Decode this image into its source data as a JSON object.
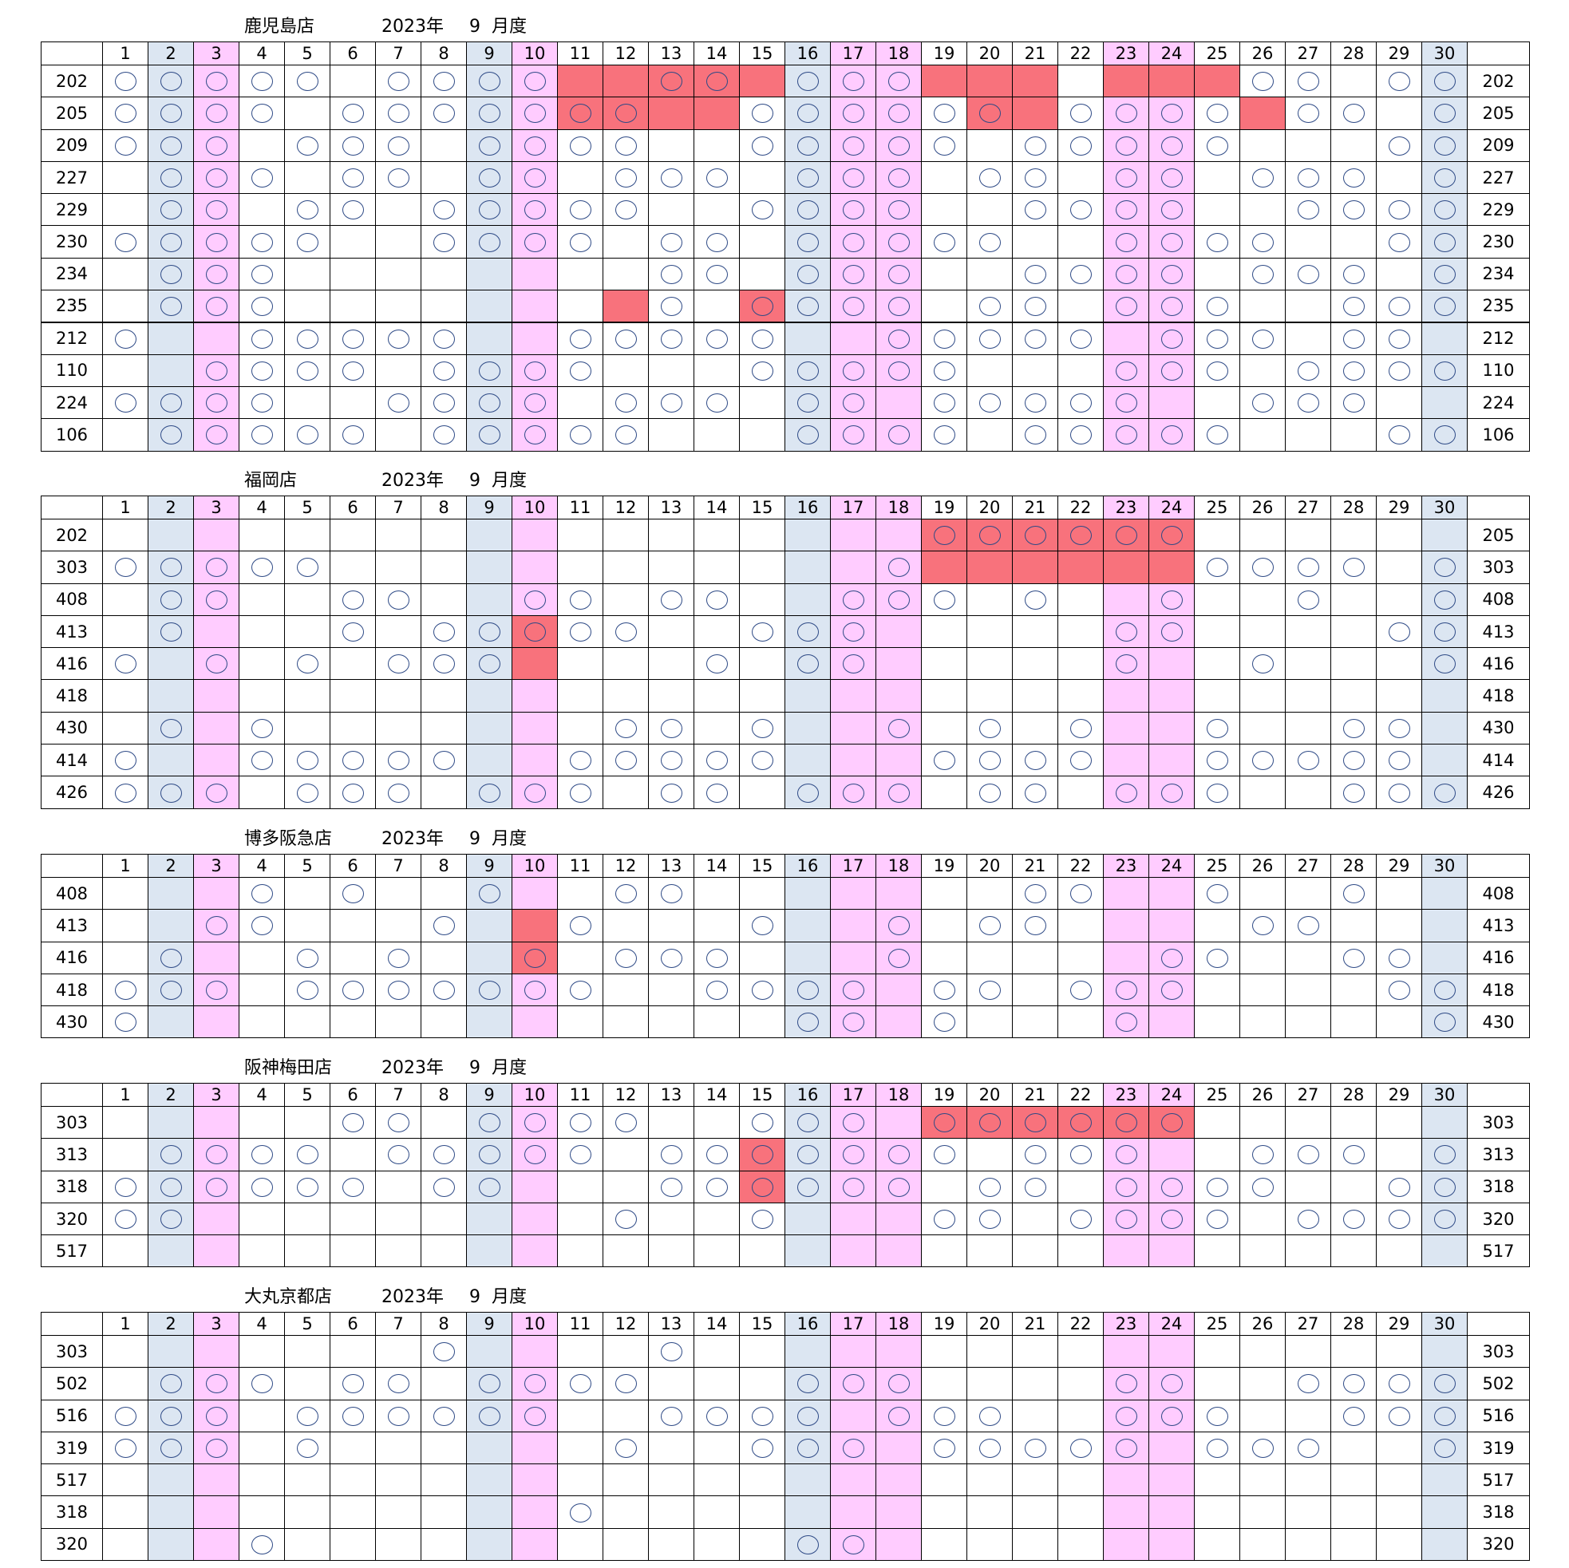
{
  "colors": {
    "blue_day": "#dce6f2",
    "pink_day": "#ffccff",
    "red_cell": "#f8727c",
    "circle": "#2e4a86"
  },
  "days": [
    1,
    2,
    3,
    4,
    5,
    6,
    7,
    8,
    9,
    10,
    11,
    12,
    13,
    14,
    15,
    16,
    17,
    18,
    19,
    20,
    21,
    22,
    23,
    24,
    25,
    26,
    27,
    28,
    29,
    30
  ],
  "blue_days": [
    2,
    9,
    16,
    30
  ],
  "pink_days": [
    3,
    10,
    17,
    18,
    23,
    24
  ],
  "circle_icon": "circle-mark-icon",
  "stores": [
    {
      "name": "鹿児島店",
      "year": "2023年",
      "month": "9",
      "month_label": "月度",
      "thick_after_row": 7,
      "rows": [
        {
          "left": "202",
          "right": "202",
          "circles": [
            1,
            2,
            3,
            4,
            5,
            7,
            8,
            9,
            10,
            13,
            14,
            16,
            17,
            18,
            26,
            27,
            29,
            30
          ],
          "red": [
            11,
            12,
            13,
            14,
            15,
            19,
            20,
            21,
            23,
            24,
            25
          ]
        },
        {
          "left": "205",
          "right": "205",
          "circles": [
            1,
            2,
            3,
            4,
            6,
            7,
            8,
            9,
            10,
            11,
            12,
            15,
            16,
            17,
            18,
            19,
            20,
            22,
            23,
            24,
            25,
            27,
            28,
            30
          ],
          "red": [
            11,
            12,
            13,
            14,
            20,
            21,
            26
          ]
        },
        {
          "left": "209",
          "right": "209",
          "circles": [
            1,
            2,
            3,
            5,
            6,
            7,
            9,
            10,
            11,
            12,
            15,
            16,
            17,
            18,
            19,
            21,
            22,
            23,
            24,
            25,
            29,
            30
          ],
          "red": []
        },
        {
          "left": "227",
          "right": "227",
          "circles": [
            2,
            3,
            4,
            6,
            7,
            9,
            10,
            12,
            13,
            14,
            16,
            17,
            18,
            20,
            21,
            23,
            24,
            26,
            27,
            28,
            30
          ],
          "red": []
        },
        {
          "left": "229",
          "right": "229",
          "circles": [
            2,
            3,
            5,
            6,
            8,
            9,
            10,
            11,
            12,
            15,
            16,
            17,
            18,
            21,
            22,
            23,
            24,
            27,
            28,
            29,
            30
          ],
          "red": []
        },
        {
          "left": "230",
          "right": "230",
          "circles": [
            1,
            2,
            3,
            4,
            5,
            8,
            9,
            10,
            11,
            13,
            14,
            16,
            17,
            18,
            19,
            20,
            23,
            24,
            25,
            26,
            29,
            30
          ],
          "red": []
        },
        {
          "left": "234",
          "right": "234",
          "circles": [
            2,
            3,
            4,
            13,
            14,
            16,
            17,
            18,
            21,
            22,
            23,
            24,
            26,
            27,
            28,
            30
          ],
          "red": []
        },
        {
          "left": "235",
          "right": "235",
          "circles": [
            2,
            3,
            4,
            13,
            15,
            16,
            17,
            18,
            20,
            21,
            23,
            24,
            25,
            28,
            29,
            30
          ],
          "red": [
            12,
            15
          ]
        },
        {
          "left": "212",
          "right": "212",
          "circles": [
            1,
            4,
            5,
            6,
            7,
            8,
            11,
            12,
            13,
            14,
            15,
            18,
            19,
            20,
            21,
            22,
            24,
            25,
            26,
            28,
            29
          ],
          "red": []
        },
        {
          "left": "110",
          "right": "110",
          "circles": [
            3,
            4,
            5,
            6,
            8,
            9,
            10,
            11,
            15,
            16,
            17,
            18,
            19,
            23,
            24,
            25,
            27,
            28,
            29,
            30
          ],
          "red": []
        },
        {
          "left": "224",
          "right": "224",
          "circles": [
            1,
            2,
            3,
            4,
            7,
            8,
            9,
            10,
            12,
            13,
            14,
            16,
            17,
            19,
            20,
            21,
            22,
            23,
            26,
            27,
            28
          ],
          "red": []
        },
        {
          "left": "106",
          "right": "106",
          "circles": [
            2,
            3,
            4,
            5,
            6,
            8,
            9,
            10,
            11,
            12,
            16,
            17,
            18,
            19,
            21,
            22,
            23,
            24,
            25,
            29,
            30
          ],
          "red": []
        }
      ]
    },
    {
      "name": "福岡店",
      "year": "2023年",
      "month": "9",
      "month_label": "月度",
      "thick_after_row": -1,
      "rows": [
        {
          "left": "202",
          "right": "205",
          "circles": [
            19,
            20,
            21,
            22,
            23,
            24
          ],
          "red": [
            19,
            20,
            21,
            22,
            23,
            24
          ]
        },
        {
          "left": "303",
          "right": "303",
          "circles": [
            1,
            2,
            3,
            4,
            5,
            18,
            25,
            26,
            27,
            28,
            30
          ],
          "red": [
            19,
            20,
            21,
            22,
            23,
            24
          ]
        },
        {
          "left": "408",
          "right": "408",
          "circles": [
            2,
            3,
            6,
            7,
            10,
            11,
            13,
            14,
            17,
            18,
            19,
            21,
            24,
            27,
            30
          ],
          "red": []
        },
        {
          "left": "413",
          "right": "413",
          "circles": [
            2,
            6,
            8,
            9,
            10,
            11,
            12,
            15,
            16,
            17,
            23,
            24,
            29,
            30
          ],
          "red": [
            10
          ]
        },
        {
          "left": "416",
          "right": "416",
          "circles": [
            1,
            3,
            5,
            7,
            8,
            9,
            14,
            16,
            17,
            23,
            26,
            30
          ],
          "red": [
            10
          ]
        },
        {
          "left": "418",
          "right": "418",
          "circles": [],
          "red": []
        },
        {
          "left": "430",
          "right": "430",
          "circles": [
            2,
            4,
            12,
            13,
            15,
            18,
            20,
            22,
            25,
            28,
            29
          ],
          "red": []
        },
        {
          "left": "414",
          "right": "414",
          "circles": [
            1,
            4,
            5,
            6,
            7,
            8,
            11,
            12,
            13,
            14,
            15,
            19,
            20,
            21,
            22,
            25,
            26,
            27,
            28,
            29
          ],
          "red": []
        },
        {
          "left": "426",
          "right": "426",
          "circles": [
            1,
            2,
            3,
            5,
            6,
            7,
            9,
            10,
            11,
            13,
            14,
            16,
            17,
            18,
            20,
            21,
            23,
            24,
            25,
            28,
            29,
            30
          ],
          "red": []
        }
      ]
    },
    {
      "name": "博多阪急店",
      "year": "2023年",
      "month": "9",
      "month_label": "月度",
      "thick_after_row": -1,
      "rows": [
        {
          "left": "408",
          "right": "408",
          "circles": [
            4,
            6,
            9,
            12,
            13,
            21,
            22,
            25,
            28
          ],
          "red": []
        },
        {
          "left": "413",
          "right": "413",
          "circles": [
            3,
            4,
            8,
            11,
            15,
            18,
            20,
            21,
            26,
            27
          ],
          "red": [
            10
          ]
        },
        {
          "left": "416",
          "right": "416",
          "circles": [
            2,
            5,
            7,
            10,
            12,
            13,
            14,
            18,
            24,
            25,
            28,
            29
          ],
          "red": [
            10
          ]
        },
        {
          "left": "418",
          "right": "418",
          "circles": [
            1,
            2,
            3,
            5,
            6,
            7,
            8,
            9,
            10,
            11,
            14,
            15,
            16,
            17,
            19,
            20,
            22,
            23,
            24,
            29,
            30
          ],
          "red": []
        },
        {
          "left": "430",
          "right": "430",
          "circles": [
            1,
            16,
            17,
            19,
            23,
            30
          ],
          "red": []
        }
      ]
    },
    {
      "name": "阪神梅田店",
      "year": "2023年",
      "month": "9",
      "month_label": "月度",
      "thick_after_row": -1,
      "rows": [
        {
          "left": "303",
          "right": "303",
          "circles": [
            6,
            7,
            9,
            10,
            11,
            12,
            15,
            16,
            17,
            19,
            20,
            21,
            22,
            23,
            24
          ],
          "red": [
            19,
            20,
            21,
            22,
            23,
            24
          ]
        },
        {
          "left": "313",
          "right": "313",
          "circles": [
            2,
            3,
            4,
            5,
            7,
            8,
            9,
            10,
            11,
            13,
            14,
            15,
            16,
            17,
            18,
            19,
            21,
            22,
            23,
            26,
            27,
            28,
            30
          ],
          "red": [
            15
          ]
        },
        {
          "left": "318",
          "right": "318",
          "circles": [
            1,
            2,
            3,
            4,
            5,
            6,
            8,
            9,
            13,
            14,
            15,
            16,
            17,
            18,
            20,
            21,
            23,
            24,
            25,
            26,
            29,
            30
          ],
          "red": [
            15
          ]
        },
        {
          "left": "320",
          "right": "320",
          "circles": [
            1,
            2,
            12,
            15,
            19,
            20,
            22,
            23,
            24,
            25,
            27,
            28,
            29,
            30
          ],
          "red": []
        },
        {
          "left": "517",
          "right": "517",
          "circles": [],
          "red": []
        }
      ]
    },
    {
      "name": "大丸京都店",
      "year": "2023年",
      "month": "9",
      "month_label": "月度",
      "thick_after_row": -1,
      "rows": [
        {
          "left": "303",
          "right": "303",
          "circles": [
            8,
            13
          ],
          "red": []
        },
        {
          "left": "502",
          "right": "502",
          "circles": [
            2,
            3,
            4,
            6,
            7,
            9,
            10,
            11,
            12,
            16,
            17,
            18,
            23,
            24,
            27,
            28,
            29,
            30
          ],
          "red": []
        },
        {
          "left": "516",
          "right": "516",
          "circles": [
            1,
            2,
            3,
            5,
            6,
            7,
            8,
            9,
            10,
            13,
            14,
            15,
            16,
            18,
            19,
            20,
            23,
            24,
            25,
            28,
            29,
            30
          ],
          "red": []
        },
        {
          "left": "319",
          "right": "319",
          "circles": [
            1,
            2,
            3,
            5,
            12,
            15,
            16,
            17,
            19,
            20,
            21,
            22,
            23,
            25,
            26,
            27,
            30
          ],
          "red": []
        },
        {
          "left": "517",
          "right": "517",
          "circles": [],
          "red": []
        },
        {
          "left": "318",
          "right": "318",
          "circles": [
            11
          ],
          "red": []
        },
        {
          "left": "320",
          "right": "320",
          "circles": [
            4,
            16,
            17
          ],
          "red": []
        }
      ]
    }
  ]
}
